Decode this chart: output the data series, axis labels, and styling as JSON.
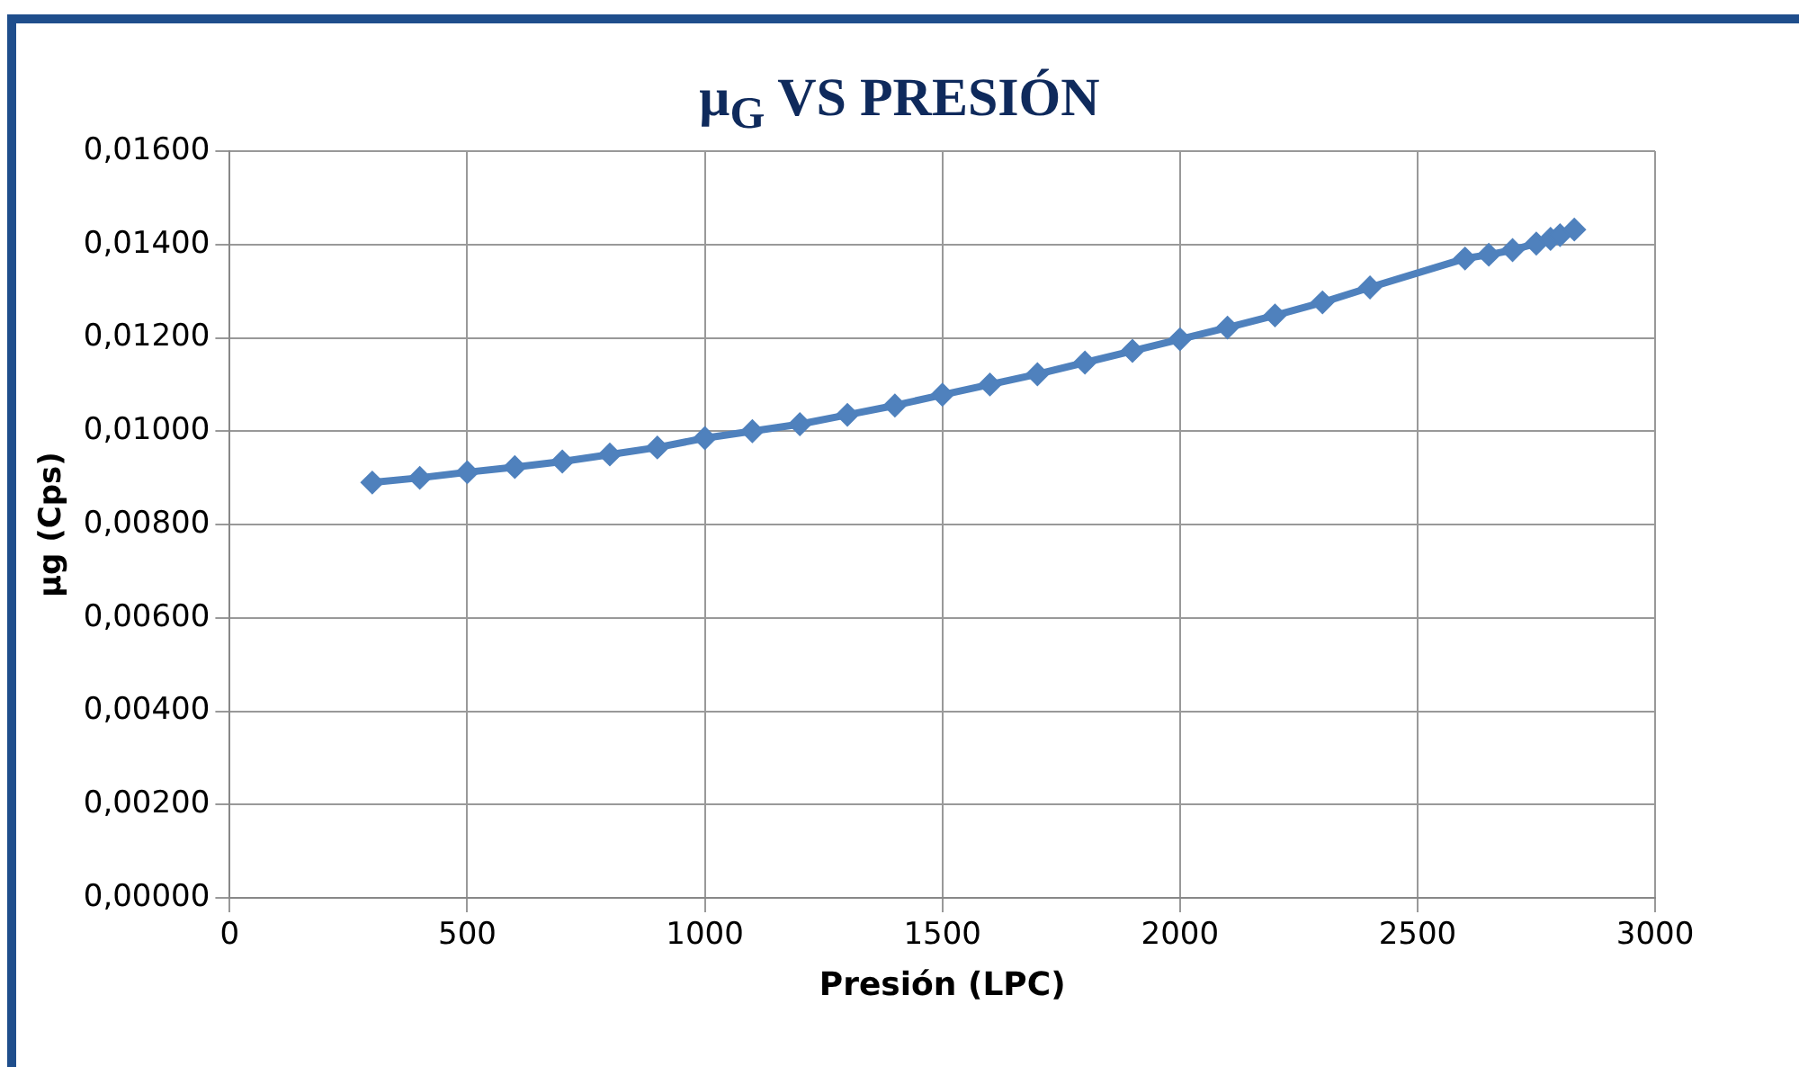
{
  "chart_data": {
    "type": "line",
    "title": "μ$_{G}$ VS PRESIÓN",
    "xlabel": "Presión (LPC)",
    "ylabel": "μg (Cps)",
    "x": [
      300,
      400,
      500,
      600,
      700,
      800,
      900,
      1000,
      1100,
      1200,
      1300,
      1400,
      1500,
      1600,
      1700,
      1800,
      1900,
      2000,
      2100,
      2200,
      2300,
      2400,
      2600,
      2650,
      2700,
      2750,
      2780,
      2800,
      2830
    ],
    "series": [
      {
        "color": "#4f81bd",
        "values": [
          0.0089,
          0.009,
          0.00912,
          0.00923,
          0.00935,
          0.0095,
          0.00965,
          0.00985,
          0.01,
          0.01015,
          0.01035,
          0.01055,
          0.01078,
          0.011,
          0.01122,
          0.01147,
          0.01172,
          0.01197,
          0.01222,
          0.01248,
          0.01276,
          0.01308,
          0.0137,
          0.01378,
          0.01388,
          0.01402,
          0.01412,
          0.0142,
          0.01432
        ]
      }
    ],
    "xlim": [
      0,
      3000
    ],
    "xticks": [
      0,
      500,
      1000,
      1500,
      2000,
      2500,
      3000
    ],
    "ylim": [
      0,
      0.016
    ],
    "yticks": [
      {
        "value": 0,
        "label": "0,00000"
      },
      {
        "value": 0.002,
        "label": "0,00200"
      },
      {
        "value": 0.004,
        "label": "0,00400"
      },
      {
        "value": 0.006,
        "label": "0,00600"
      },
      {
        "value": 0.008,
        "label": "0,00800"
      },
      {
        "value": 0.01,
        "label": "0,01000"
      },
      {
        "value": 0.012,
        "label": "0,01200"
      },
      {
        "value": 0.014,
        "label": "0,01400"
      },
      {
        "value": 0.016,
        "label": "0,01600"
      }
    ],
    "grid": true,
    "legend": false,
    "marker": "diamond",
    "line_style": "solid"
  }
}
